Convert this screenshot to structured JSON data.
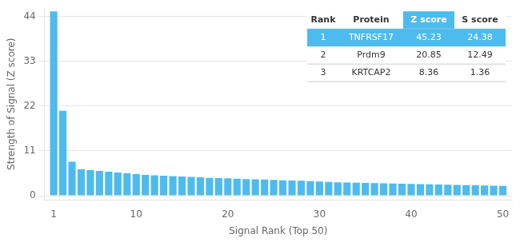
{
  "chart_data": {
    "type": "bar",
    "xlabel": "Signal Rank (Top 50)",
    "ylabel": "Strength of Signal (Z score)",
    "x": [
      1,
      2,
      3,
      4,
      5,
      6,
      7,
      8,
      9,
      10,
      11,
      12,
      13,
      14,
      15,
      16,
      17,
      18,
      19,
      20,
      21,
      22,
      23,
      24,
      25,
      26,
      27,
      28,
      29,
      30,
      31,
      32,
      33,
      34,
      35,
      36,
      37,
      38,
      39,
      40,
      41,
      42,
      43,
      44,
      45,
      46,
      47,
      48,
      49,
      50
    ],
    "values": [
      45.23,
      20.85,
      8.36,
      6.5,
      6.3,
      6.1,
      5.9,
      5.7,
      5.5,
      5.3,
      5.1,
      5.0,
      4.9,
      4.8,
      4.7,
      4.6,
      4.5,
      4.4,
      4.35,
      4.3,
      4.2,
      4.1,
      4.05,
      4.0,
      3.9,
      3.8,
      3.75,
      3.7,
      3.6,
      3.5,
      3.4,
      3.3,
      3.25,
      3.2,
      3.15,
      3.1,
      3.05,
      3.0,
      2.95,
      2.9,
      2.85,
      2.8,
      2.75,
      2.7,
      2.65,
      2.6,
      2.55,
      2.5,
      2.45,
      2.4
    ],
    "color": "#4DBBEE",
    "xlim": [
      0,
      51
    ],
    "xticks": [
      1,
      10,
      20,
      30,
      40,
      50
    ],
    "ylim": [
      -1,
      46
    ],
    "yticks": [
      0,
      11,
      22,
      33,
      44
    ],
    "grid": "y",
    "table": {
      "headers": [
        "Rank",
        "Protein",
        "Z score",
        "S score"
      ],
      "rows": [
        [
          "1",
          "TNFRSF17",
          "45.23",
          "24.38"
        ],
        [
          "2",
          "Prdm9",
          "20.85",
          "12.49"
        ],
        [
          "3",
          "KRTCAP2",
          "8.36",
          "1.36"
        ]
      ],
      "highlight_row": 0,
      "highlight_color": "#4DBBEE",
      "highlight_column": 2,
      "header_color": "#4DBBEE"
    }
  }
}
